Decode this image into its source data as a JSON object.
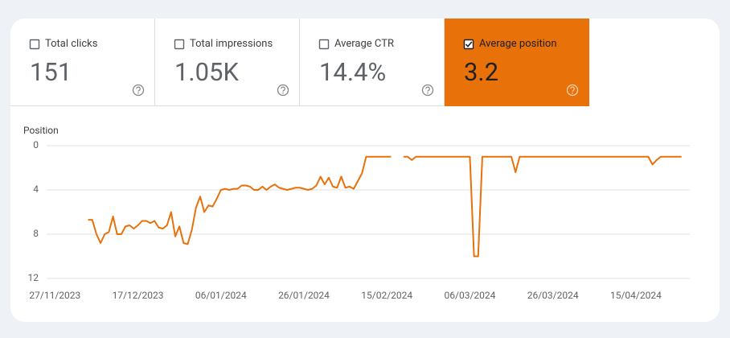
{
  "metrics": [
    {
      "label": "Total clicks",
      "value": "151",
      "checked": false
    },
    {
      "label": "Total impressions",
      "value": "1.05K",
      "checked": false
    },
    {
      "label": "Average CTR",
      "value": "14.4%",
      "checked": false
    },
    {
      "label": "Average position",
      "value": "3.2",
      "checked": true
    }
  ],
  "chart_data": {
    "type": "line",
    "y_label": "Position",
    "grid": true,
    "y_inverted": true,
    "ylim": [
      0,
      12
    ],
    "yticks": [
      0,
      4,
      8,
      12
    ],
    "xlim": [
      "25/11/2023",
      "28/04/2024"
    ],
    "xticks": [
      "27/11/2023",
      "17/12/2023",
      "06/01/2024",
      "26/01/2024",
      "15/02/2024",
      "06/03/2024",
      "26/03/2024",
      "15/04/2024"
    ],
    "x": [
      "05/12/2023",
      "06/12/2023",
      "07/12/2023",
      "08/12/2023",
      "09/12/2023",
      "10/12/2023",
      "11/12/2023",
      "12/12/2023",
      "13/12/2023",
      "14/12/2023",
      "15/12/2023",
      "16/12/2023",
      "17/12/2023",
      "18/12/2023",
      "19/12/2023",
      "20/12/2023",
      "21/12/2023",
      "22/12/2023",
      "23/12/2023",
      "24/12/2023",
      "25/12/2023",
      "26/12/2023",
      "27/12/2023",
      "28/12/2023",
      "29/12/2023",
      "30/12/2023",
      "31/12/2023",
      "01/01/2024",
      "02/01/2024",
      "03/01/2024",
      "04/01/2024",
      "05/01/2024",
      "06/01/2024",
      "07/01/2024",
      "08/01/2024",
      "09/01/2024",
      "10/01/2024",
      "11/01/2024",
      "12/01/2024",
      "13/01/2024",
      "14/01/2024",
      "15/01/2024",
      "16/01/2024",
      "17/01/2024",
      "18/01/2024",
      "19/01/2024",
      "20/01/2024",
      "21/01/2024",
      "22/01/2024",
      "23/01/2024",
      "24/01/2024",
      "25/01/2024",
      "26/01/2024",
      "27/01/2024",
      "28/01/2024",
      "29/01/2024",
      "30/01/2024",
      "31/01/2024",
      "01/02/2024",
      "02/02/2024",
      "03/02/2024",
      "04/02/2024",
      "05/02/2024",
      "06/02/2024",
      "07/02/2024",
      "08/02/2024",
      "09/02/2024",
      "10/02/2024",
      "11/02/2024",
      "12/02/2024",
      "13/02/2024",
      "14/02/2024",
      "15/02/2024",
      "16/02/2024",
      "17/02/2024",
      "18/02/2024",
      "19/02/2024",
      "20/02/2024",
      "21/02/2024",
      "22/02/2024",
      "23/02/2024",
      "24/02/2024",
      "25/02/2024",
      "26/02/2024",
      "27/02/2024",
      "28/02/2024",
      "29/02/2024",
      "01/03/2024",
      "02/03/2024",
      "03/03/2024",
      "04/03/2024",
      "05/03/2024",
      "06/03/2024",
      "07/03/2024",
      "08/03/2024",
      "09/03/2024",
      "10/03/2024",
      "11/03/2024",
      "12/03/2024",
      "13/03/2024",
      "14/03/2024",
      "15/03/2024",
      "16/03/2024",
      "17/03/2024",
      "18/03/2024",
      "19/03/2024",
      "20/03/2024",
      "21/03/2024",
      "22/03/2024",
      "23/03/2024",
      "24/03/2024",
      "25/03/2024",
      "26/03/2024",
      "27/03/2024",
      "28/03/2024",
      "29/03/2024",
      "30/03/2024",
      "31/03/2024",
      "01/04/2024",
      "02/04/2024",
      "03/04/2024",
      "04/04/2024",
      "05/04/2024",
      "06/04/2024",
      "07/04/2024",
      "08/04/2024",
      "09/04/2024",
      "10/04/2024",
      "11/04/2024",
      "12/04/2024",
      "13/04/2024",
      "14/04/2024",
      "15/04/2024",
      "16/04/2024",
      "17/04/2024",
      "18/04/2024",
      "19/04/2024",
      "20/04/2024",
      "21/04/2024",
      "22/04/2024",
      "23/04/2024",
      "24/04/2024",
      "25/04/2024",
      "26/04/2024"
    ],
    "series": [
      {
        "name": "Average position",
        "color": "#e8710a",
        "values": [
          6.7,
          6.7,
          8.0,
          8.8,
          8.0,
          7.8,
          6.4,
          8.0,
          8.0,
          7.3,
          7.2,
          7.5,
          7.2,
          6.8,
          6.8,
          7.0,
          6.8,
          7.4,
          7.5,
          7.2,
          6.0,
          8.2,
          7.3,
          8.8,
          8.9,
          7.6,
          5.6,
          4.6,
          6.0,
          5.4,
          5.5,
          4.8,
          4.0,
          3.9,
          4.0,
          3.9,
          3.9,
          3.6,
          3.6,
          3.7,
          4.0,
          4.0,
          3.7,
          4.0,
          3.7,
          3.5,
          3.8,
          3.9,
          4.0,
          3.9,
          3.8,
          3.8,
          3.9,
          4.0,
          3.9,
          3.6,
          2.8,
          3.5,
          2.9,
          3.7,
          3.8,
          2.8,
          3.8,
          3.7,
          3.9,
          3.2,
          2.5,
          1,
          1,
          1,
          1,
          1,
          1,
          1,
          null,
          null,
          1,
          1,
          1.3,
          1,
          1,
          1,
          1,
          1,
          1,
          1,
          1,
          1,
          1,
          1,
          1,
          1,
          1,
          10,
          10,
          1,
          1,
          1,
          1,
          1,
          1,
          1,
          1,
          2.4,
          1,
          1,
          1,
          1,
          1,
          1,
          1,
          1,
          1,
          1,
          1,
          1,
          1,
          1,
          1,
          1,
          1,
          1,
          1,
          1,
          1,
          1,
          1,
          1,
          1,
          1,
          1,
          1,
          1,
          1,
          1,
          1,
          1.7,
          1.3,
          1,
          1,
          1,
          1,
          1,
          1
        ]
      }
    ]
  }
}
